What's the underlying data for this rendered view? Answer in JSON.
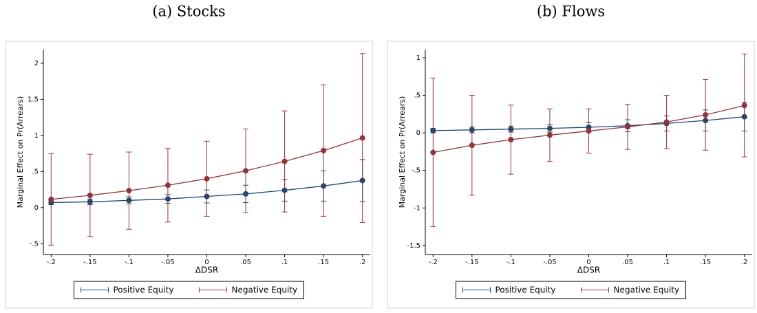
{
  "chart_data": [
    {
      "type": "line",
      "title": "(a) Stocks",
      "x_label": "ΔDSR",
      "y_label": "Marginal Effect on Pr(Arrears)",
      "x": [
        -0.2,
        -0.15,
        -0.1,
        -0.05,
        0,
        0.05,
        0.1,
        0.15,
        0.2
      ],
      "xlim": [
        -0.21,
        0.21
      ],
      "xticks": [
        {
          "value": -0.2,
          "label": "-.2"
        },
        {
          "value": -0.15,
          "label": "-.15"
        },
        {
          "value": -0.1,
          "label": "-.1"
        },
        {
          "value": -0.05,
          "label": "-.05"
        },
        0,
        {
          "value": 0.05,
          "label": ".05"
        },
        {
          "value": 0.1,
          "label": ".1"
        },
        {
          "value": 0.15,
          "label": ".15"
        },
        {
          "value": 0.2,
          "label": ".2"
        }
      ],
      "ylim": [
        -0.65,
        2.19
      ],
      "yticks": [
        {
          "value": -0.5,
          "label": "-.5"
        },
        0,
        {
          "value": 0.5,
          "label": ".5"
        },
        1,
        {
          "value": 1.5,
          "label": "1.5"
        },
        2
      ],
      "legend": "bottom",
      "series": [
        {
          "name": "Positive Equity",
          "color": "#1a476f",
          "values": [
            0.07,
            0.08,
            0.1,
            0.12,
            0.155,
            0.19,
            0.24,
            0.3,
            0.375
          ],
          "errors": [
            0.03,
            0.04,
            0.05,
            0.06,
            0.09,
            0.12,
            0.15,
            0.21,
            0.29
          ]
        },
        {
          "name": "Negative Equity",
          "color": "#90353b",
          "values": [
            0.115,
            0.17,
            0.235,
            0.31,
            0.4,
            0.51,
            0.64,
            0.79,
            0.965
          ],
          "errors": [
            0.635,
            0.57,
            0.535,
            0.51,
            0.52,
            0.58,
            0.7,
            0.91,
            1.17
          ]
        }
      ]
    },
    {
      "type": "line",
      "title": "(b) Flows",
      "x_label": "ΔDSR",
      "y_label": "Marginal Effect on Pr(Arrears)",
      "x": [
        -0.2,
        -0.15,
        -0.1,
        -0.05,
        0,
        0.05,
        0.1,
        0.15,
        0.2
      ],
      "xlim": [
        -0.21,
        0.21
      ],
      "xticks": [
        {
          "value": -0.2,
          "label": "-.2"
        },
        {
          "value": -0.15,
          "label": "-.15"
        },
        {
          "value": -0.1,
          "label": "-.1"
        },
        {
          "value": -0.05,
          "label": "-.05"
        },
        0,
        {
          "value": 0.05,
          "label": ".05"
        },
        {
          "value": 0.1,
          "label": ".1"
        },
        {
          "value": 0.15,
          "label": ".15"
        },
        {
          "value": 0.2,
          "label": ".2"
        }
      ],
      "ylim": [
        -1.62,
        1.11
      ],
      "yticks": [
        {
          "value": -1.5,
          "label": "-1.5"
        },
        -1,
        {
          "value": -0.5,
          "label": "-.5"
        },
        0,
        {
          "value": 0.5,
          "label": ".5"
        },
        1
      ],
      "legend": "bottom",
      "series": [
        {
          "name": "Positive Equity",
          "color": "#1a476f",
          "values": [
            0.03,
            0.04,
            0.05,
            0.06,
            0.075,
            0.095,
            0.125,
            0.165,
            0.215
          ],
          "errors": [
            0.03,
            0.04,
            0.04,
            0.05,
            0.06,
            0.08,
            0.1,
            0.14,
            0.19
          ]
        },
        {
          "name": "Negative Equity",
          "color": "#90353b",
          "values": [
            -0.26,
            -0.165,
            -0.09,
            -0.03,
            0.025,
            0.08,
            0.145,
            0.24,
            0.365
          ],
          "errors": [
            0.99,
            0.665,
            0.46,
            0.35,
            0.295,
            0.3,
            0.355,
            0.47,
            0.685
          ]
        }
      ]
    }
  ]
}
